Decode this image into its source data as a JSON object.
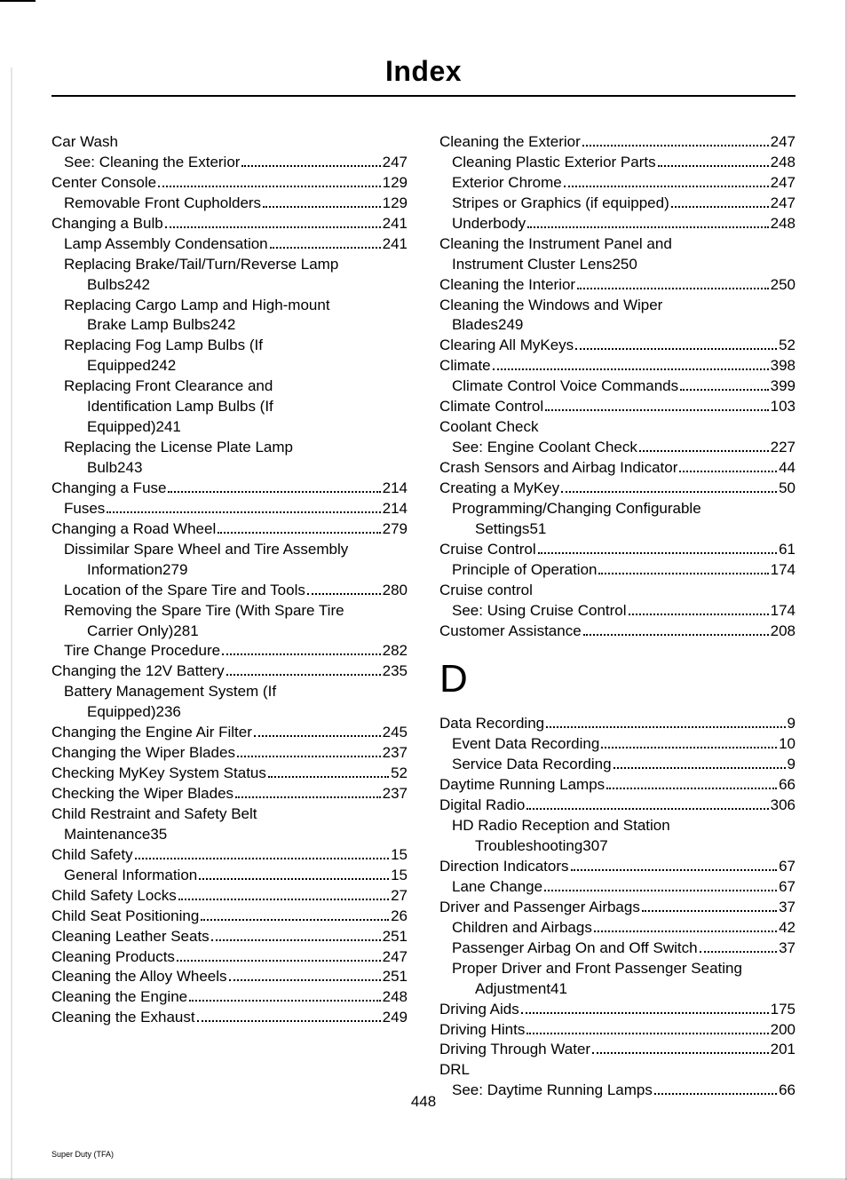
{
  "heading": "Index",
  "page_number": "448",
  "doc_title": "Super Duty (TFA)",
  "styles": {
    "body_fontsize": 17,
    "heading_fontsize": 32,
    "section_letter_fontsize": 44,
    "footer_doc_fontsize": 9,
    "text_color": "#000000",
    "background_color": "#ffffff",
    "font_family": "Arial, Helvetica, sans-serif",
    "hr_color": "#000000",
    "leader_style": "dotted"
  },
  "section_letters": {
    "d": "D"
  },
  "left_column": [
    {
      "type": "entry",
      "indent": 0,
      "label": "Car Wash",
      "pg": null
    },
    {
      "type": "entry",
      "indent": 1,
      "label": "See: Cleaning the Exterior",
      "pg": "247"
    },
    {
      "type": "entry",
      "indent": 0,
      "label": "Center Console",
      "pg": "129"
    },
    {
      "type": "entry",
      "indent": 1,
      "label": "Removable Front Cupholders",
      "pg": "129"
    },
    {
      "type": "entry",
      "indent": 0,
      "label": "Changing a Bulb",
      "pg": "241"
    },
    {
      "type": "entry",
      "indent": 1,
      "label": "Lamp Assembly Condensation",
      "pg": "241"
    },
    {
      "type": "wrap",
      "indent": 1,
      "l1": "Replacing Brake/Tail/Turn/Reverse Lamp",
      "l2": "Bulbs",
      "pg": "242"
    },
    {
      "type": "wrap",
      "indent": 1,
      "l1": "Replacing Cargo Lamp and High-mount",
      "l2": "Brake Lamp Bulbs",
      "pg": "242"
    },
    {
      "type": "wrap",
      "indent": 1,
      "l1": "Replacing Fog Lamp Bulbs (If",
      "l2": "Equipped",
      "pg": "242"
    },
    {
      "type": "wrap3",
      "indent": 1,
      "l1": "Replacing Front Clearance and",
      "l2": "Identification Lamp Bulbs (If",
      "l3": "Equipped)",
      "pg": "241"
    },
    {
      "type": "wrap",
      "indent": 1,
      "l1": "Replacing the License Plate Lamp",
      "l2": "Bulb",
      "pg": "243"
    },
    {
      "type": "entry",
      "indent": 0,
      "label": "Changing a Fuse",
      "pg": "214"
    },
    {
      "type": "entry",
      "indent": 1,
      "label": "Fuses",
      "pg": "214"
    },
    {
      "type": "entry",
      "indent": 0,
      "label": "Changing a Road Wheel",
      "pg": "279"
    },
    {
      "type": "wrap",
      "indent": 1,
      "l1": "Dissimilar Spare Wheel and Tire Assembly",
      "l2": "Information",
      "pg": "279"
    },
    {
      "type": "entry",
      "indent": 1,
      "label": "Location of the Spare Tire and Tools",
      "pg": "280"
    },
    {
      "type": "wrap",
      "indent": 1,
      "l1": "Removing the Spare Tire (With Spare Tire",
      "l2": "Carrier Only)",
      "pg": "281"
    },
    {
      "type": "entry",
      "indent": 1,
      "label": "Tire Change Procedure",
      "pg": "282"
    },
    {
      "type": "entry",
      "indent": 0,
      "label": "Changing the 12V Battery",
      "pg": "235"
    },
    {
      "type": "wrap",
      "indent": 1,
      "l1": "Battery Management System (If",
      "l2": "Equipped)",
      "pg": "236"
    },
    {
      "type": "entry",
      "indent": 0,
      "label": "Changing the Engine Air Filter",
      "pg": "245"
    },
    {
      "type": "entry",
      "indent": 0,
      "label": "Changing the Wiper Blades",
      "pg": "237"
    },
    {
      "type": "entry",
      "indent": 0,
      "label": "Checking MyKey System Status",
      "pg": "52"
    },
    {
      "type": "entry",
      "indent": 0,
      "label": "Checking the Wiper Blades",
      "pg": "237"
    },
    {
      "type": "wrap",
      "indent": 0,
      "l1": "Child Restraint and Safety Belt",
      "l2": "Maintenance",
      "pg": "35",
      "l2indent": 1
    },
    {
      "type": "entry",
      "indent": 0,
      "label": "Child Safety",
      "pg": "15"
    },
    {
      "type": "entry",
      "indent": 1,
      "label": "General Information",
      "pg": "15"
    },
    {
      "type": "entry",
      "indent": 0,
      "label": "Child Safety Locks",
      "pg": "27"
    },
    {
      "type": "entry",
      "indent": 0,
      "label": "Child Seat Positioning",
      "pg": "26"
    },
    {
      "type": "entry",
      "indent": 0,
      "label": "Cleaning Leather Seats",
      "pg": "251"
    },
    {
      "type": "entry",
      "indent": 0,
      "label": "Cleaning Products",
      "pg": "247"
    },
    {
      "type": "entry",
      "indent": 0,
      "label": "Cleaning the Alloy Wheels",
      "pg": "251"
    },
    {
      "type": "entry",
      "indent": 0,
      "label": "Cleaning the Engine",
      "pg": "248"
    },
    {
      "type": "entry",
      "indent": 0,
      "label": "Cleaning the Exhaust",
      "pg": "249"
    }
  ],
  "right_column_c": [
    {
      "type": "entry",
      "indent": 0,
      "label": "Cleaning the Exterior",
      "pg": "247"
    },
    {
      "type": "entry",
      "indent": 1,
      "label": "Cleaning Plastic Exterior Parts",
      "pg": "248"
    },
    {
      "type": "entry",
      "indent": 1,
      "label": "Exterior Chrome",
      "pg": "247"
    },
    {
      "type": "entry",
      "indent": 1,
      "label": "Stripes or Graphics (if equipped)",
      "pg": "247"
    },
    {
      "type": "entry",
      "indent": 1,
      "label": "Underbody",
      "pg": "248"
    },
    {
      "type": "wrap",
      "indent": 0,
      "l1": "Cleaning the Instrument Panel and",
      "l2": "Instrument Cluster Lens",
      "pg": "250",
      "l2indent": 1
    },
    {
      "type": "entry",
      "indent": 0,
      "label": "Cleaning the Interior",
      "pg": "250"
    },
    {
      "type": "wrap",
      "indent": 0,
      "l1": "Cleaning the Windows and Wiper",
      "l2": "Blades",
      "pg": "249",
      "l2indent": 1
    },
    {
      "type": "entry",
      "indent": 0,
      "label": "Clearing All MyKeys",
      "pg": "52"
    },
    {
      "type": "entry",
      "indent": 0,
      "label": "Climate",
      "pg": "398"
    },
    {
      "type": "entry",
      "indent": 1,
      "label": "Climate Control Voice Commands",
      "pg": "399"
    },
    {
      "type": "entry",
      "indent": 0,
      "label": "Climate Control",
      "pg": "103"
    },
    {
      "type": "entry",
      "indent": 0,
      "label": "Coolant Check",
      "pg": null
    },
    {
      "type": "entry",
      "indent": 1,
      "label": "See: Engine Coolant Check",
      "pg": "227"
    },
    {
      "type": "entry",
      "indent": 0,
      "label": "Crash Sensors and Airbag Indicator",
      "pg": "44"
    },
    {
      "type": "entry",
      "indent": 0,
      "label": "Creating a MyKey",
      "pg": "50"
    },
    {
      "type": "wrap",
      "indent": 1,
      "l1": "Programming/Changing Configurable",
      "l2": "Settings",
      "pg": "51"
    },
    {
      "type": "entry",
      "indent": 0,
      "label": "Cruise Control",
      "pg": "61"
    },
    {
      "type": "entry",
      "indent": 1,
      "label": "Principle of Operation",
      "pg": "174"
    },
    {
      "type": "entry",
      "indent": 0,
      "label": "Cruise control",
      "pg": null
    },
    {
      "type": "entry",
      "indent": 1,
      "label": "See: Using Cruise Control",
      "pg": "174"
    },
    {
      "type": "entry",
      "indent": 0,
      "label": "Customer Assistance",
      "pg": "208"
    }
  ],
  "right_column_d": [
    {
      "type": "entry",
      "indent": 0,
      "label": "Data Recording",
      "pg": "9"
    },
    {
      "type": "entry",
      "indent": 1,
      "label": "Event Data Recording",
      "pg": "10"
    },
    {
      "type": "entry",
      "indent": 1,
      "label": "Service Data Recording",
      "pg": "9"
    },
    {
      "type": "entry",
      "indent": 0,
      "label": "Daytime Running Lamps",
      "pg": "66"
    },
    {
      "type": "entry",
      "indent": 0,
      "label": "Digital Radio",
      "pg": "306"
    },
    {
      "type": "wrap",
      "indent": 1,
      "l1": "HD Radio Reception and Station",
      "l2": "Troubleshooting",
      "pg": "307"
    },
    {
      "type": "entry",
      "indent": 0,
      "label": "Direction Indicators",
      "pg": "67"
    },
    {
      "type": "entry",
      "indent": 1,
      "label": "Lane Change",
      "pg": "67"
    },
    {
      "type": "entry",
      "indent": 0,
      "label": "Driver and Passenger Airbags",
      "pg": "37"
    },
    {
      "type": "entry",
      "indent": 1,
      "label": "Children and Airbags",
      "pg": "42"
    },
    {
      "type": "entry",
      "indent": 1,
      "label": "Passenger Airbag On and Off Switch ",
      "pg": "37"
    },
    {
      "type": "wrap",
      "indent": 1,
      "l1": "Proper Driver and Front Passenger Seating",
      "l2": "Adjustment",
      "pg": "41"
    },
    {
      "type": "entry",
      "indent": 0,
      "label": "Driving Aids",
      "pg": "175"
    },
    {
      "type": "entry",
      "indent": 0,
      "label": "Driving Hints",
      "pg": "200"
    },
    {
      "type": "entry",
      "indent": 0,
      "label": "Driving Through Water",
      "pg": "201"
    },
    {
      "type": "entry",
      "indent": 0,
      "label": "DRL",
      "pg": null
    },
    {
      "type": "entry",
      "indent": 1,
      "label": "See: Daytime Running Lamps",
      "pg": "66"
    }
  ]
}
